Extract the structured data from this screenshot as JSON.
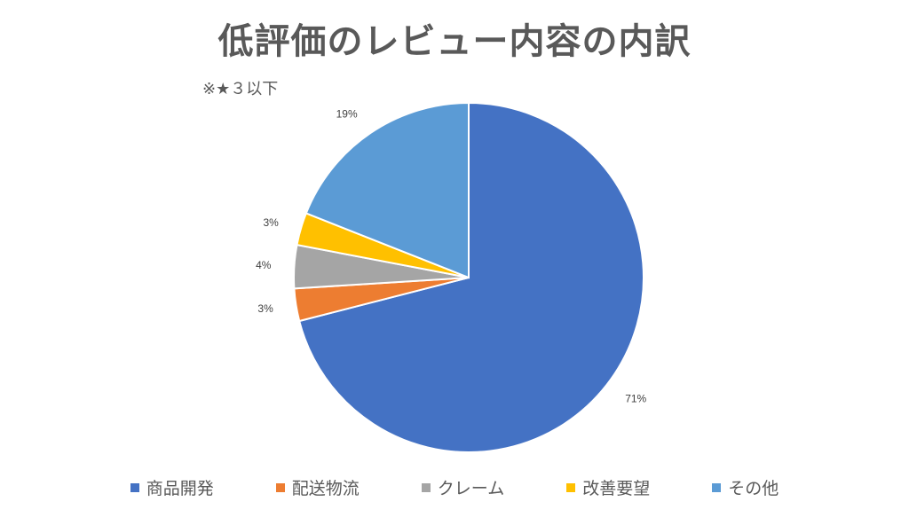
{
  "chart_data": {
    "type": "pie",
    "title": "低評価のレビュー内容の内訳",
    "subtitle": "※★３以下",
    "categories": [
      "商品開発",
      "配送物流",
      "クレーム",
      "改善要望",
      "その他"
    ],
    "values": [
      71,
      3,
      4,
      3,
      19
    ],
    "value_labels": [
      "71%",
      "3%",
      "4%",
      "3%",
      "19%"
    ],
    "colors": [
      "#4472C4",
      "#ED7D31",
      "#A5A5A5",
      "#FFC000",
      "#5B9BD5"
    ],
    "legend_position": "bottom",
    "start_angle": "12 o'clock, clockwise"
  }
}
